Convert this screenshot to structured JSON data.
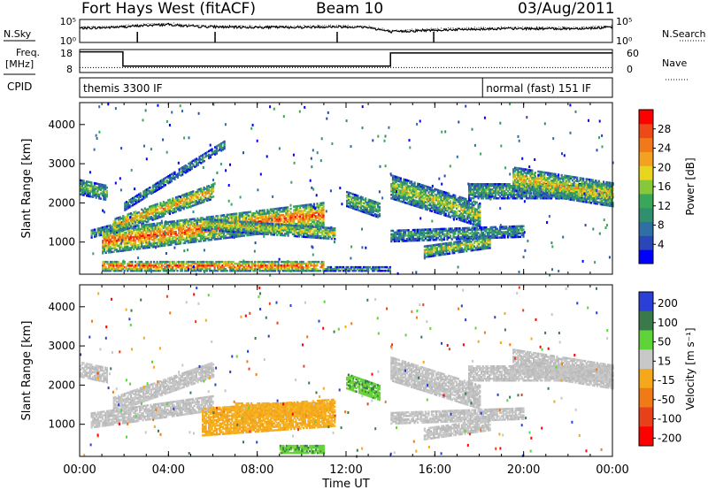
{
  "header": {
    "station": "Fort Hays West (fitACF)",
    "beam": "Beam 10",
    "date": "03/Aug/2011"
  },
  "chart_data": [
    {
      "type": "line",
      "panel": "noise",
      "ylabels_left": [
        "10^5",
        "10^0"
      ],
      "ylabels_right": [
        "10^5",
        "10^0"
      ],
      "series": [
        {
          "name": "N.Sky",
          "style": "solid"
        },
        {
          "name": "N.Search",
          "style": "dotted"
        }
      ],
      "x_hours": [
        0,
        1,
        2,
        3,
        4,
        5,
        6,
        7,
        8,
        9,
        10,
        11,
        12,
        13,
        14,
        15,
        16,
        17,
        18,
        19,
        20,
        21,
        22,
        23,
        24
      ],
      "nsky_log10": [
        3.1,
        3.2,
        3.4,
        3.7,
        3.9,
        3.5,
        3.4,
        3.3,
        3.3,
        3.3,
        3.3,
        3.4,
        3.4,
        3.3,
        2.3,
        2.5,
        2.7,
        2.8,
        2.9,
        3.0,
        3.0,
        3.0,
        3.0,
        3.1,
        3.3
      ],
      "markers_hours": [
        2.6,
        6.1,
        11.6,
        15.95
      ]
    },
    {
      "type": "line",
      "panel": "frequency-nave",
      "ylabel_left": "Freq. [MHz]",
      "yticks_left": [
        "18",
        "8"
      ],
      "ylabel_right": "Nave",
      "yticks_right": [
        "60",
        "0"
      ],
      "series": [
        {
          "name": "Freq.",
          "style": "solid"
        },
        {
          "name": "Nave",
          "style": "dotted"
        }
      ],
      "freq_steps": [
        {
          "from": 0,
          "to": 1.95,
          "mhz": 17
        },
        {
          "from": 1.95,
          "to": 14.0,
          "mhz": 10.8
        },
        {
          "from": 14.0,
          "to": 24,
          "mhz": 16.5
        }
      ],
      "nave_level": 13
    },
    {
      "type": "bar",
      "panel": "cpid",
      "label": "CPID",
      "segments": [
        {
          "from": 0,
          "to": 18.15,
          "text": "themis 3300 IF"
        },
        {
          "from": 18.15,
          "to": 24,
          "text": "normal (fast) 151 IF"
        }
      ]
    },
    {
      "type": "heatmap",
      "panel": "power",
      "ylabel": "Slant Range [km]",
      "yticks": [
        1000,
        2000,
        3000,
        4000
      ],
      "ylim": [
        180,
        4560
      ],
      "colorbar_label": "Power [dB]",
      "colorbar_ticks": [
        4,
        8,
        12,
        16,
        20,
        24,
        28
      ],
      "colorbar_colors": [
        "#0000ff",
        "#2a46b8",
        "#2f6fa6",
        "#2f8f6e",
        "#3aa65a",
        "#87c83a",
        "#e7d51e",
        "#f4a020",
        "#f07a1a",
        "#ee4a18",
        "#ff0000"
      ],
      "bands": [
        {
          "t0": 0.0,
          "t1": 1.2,
          "r0": 2200,
          "r1": 2600,
          "slope": -120,
          "intensity": 0.45
        },
        {
          "t0": 0.5,
          "t1": 2.0,
          "r0": 1100,
          "r1": 1300,
          "slope": 150,
          "intensity": 0.4
        },
        {
          "t0": 1.0,
          "t1": 11.0,
          "r0": 700,
          "r1": 1300,
          "slope": 70,
          "intensity": 0.85
        },
        {
          "t0": 1.5,
          "t1": 6.0,
          "r0": 1200,
          "r1": 1600,
          "slope": 200,
          "intensity": 0.7
        },
        {
          "t0": 2.0,
          "t1": 6.5,
          "r0": 1800,
          "r1": 2000,
          "slope": 350,
          "intensity": 0.35
        },
        {
          "t0": 5.5,
          "t1": 11.5,
          "r0": 1300,
          "r1": 1600,
          "slope": -40,
          "intensity": 0.6
        },
        {
          "t0": 1.0,
          "t1": 11.0,
          "r0": 250,
          "r1": 500,
          "slope": 0,
          "intensity": 0.9
        },
        {
          "t0": 11.0,
          "t1": 14.0,
          "r0": 250,
          "r1": 350,
          "slope": 0,
          "intensity": 0.4
        },
        {
          "t0": 12.0,
          "t1": 13.5,
          "r0": 1900,
          "r1": 2300,
          "slope": -200,
          "intensity": 0.5
        },
        {
          "t0": 14.0,
          "t1": 18.0,
          "r0": 2100,
          "r1": 2700,
          "slope": -180,
          "intensity": 0.55
        },
        {
          "t0": 14.0,
          "t1": 20.0,
          "r0": 1000,
          "r1": 1300,
          "slope": 20,
          "intensity": 0.4
        },
        {
          "t0": 15.5,
          "t1": 18.5,
          "r0": 600,
          "r1": 900,
          "slope": 80,
          "intensity": 0.6
        },
        {
          "t0": 17.5,
          "t1": 24.0,
          "r0": 2100,
          "r1": 2500,
          "slope": 0,
          "intensity": 0.45
        },
        {
          "t0": 19.5,
          "t1": 24.0,
          "r0": 2300,
          "r1": 2900,
          "slope": -90,
          "intensity": 0.65
        }
      ]
    },
    {
      "type": "heatmap",
      "panel": "velocity",
      "ylabel": "Slant Range [km]",
      "yticks": [
        1000,
        2000,
        3000,
        4000
      ],
      "ylim": [
        180,
        4560
      ],
      "colorbar_label": "Velocity [m s^-1]",
      "colorbar_ticks": [
        200,
        100,
        50,
        15,
        -15,
        -50,
        -100,
        -200
      ],
      "colorbar_colors": [
        "#2a3fd8",
        "#3a7a4a",
        "#5fd33a",
        "#c8c8c8",
        "#f5a81a",
        "#f07a16",
        "#e8401a",
        "#ff0000"
      ],
      "xticks": [
        "00:00",
        "04:00",
        "08:00",
        "12:00",
        "16:00",
        "20:00",
        "00:00"
      ],
      "xlabel": "Time UT",
      "xlim_hours": [
        0,
        24
      ],
      "bands": [
        {
          "t0": 0.0,
          "t1": 1.2,
          "r0": 2200,
          "r1": 2600,
          "slope": -120,
          "vclass": "grey"
        },
        {
          "t0": 0.5,
          "t1": 6.0,
          "r0": 900,
          "r1": 1300,
          "slope": 80,
          "vclass": "grey"
        },
        {
          "t0": 1.5,
          "t1": 6.0,
          "r0": 1300,
          "r1": 1700,
          "slope": 200,
          "vclass": "grey"
        },
        {
          "t0": 5.5,
          "t1": 11.5,
          "r0": 700,
          "r1": 1400,
          "slope": 40,
          "vclass": "orange"
        },
        {
          "t0": 7.0,
          "t1": 11.0,
          "r0": 1200,
          "r1": 1550,
          "slope": 0,
          "vclass": "orange"
        },
        {
          "t0": 9.0,
          "t1": 11.0,
          "r0": 250,
          "r1": 450,
          "slope": 0,
          "vclass": "green"
        },
        {
          "t0": 12.0,
          "t1": 13.5,
          "r0": 1900,
          "r1": 2300,
          "slope": -200,
          "vclass": "green"
        },
        {
          "t0": 14.0,
          "t1": 18.0,
          "r0": 2100,
          "r1": 2700,
          "slope": -180,
          "vclass": "grey"
        },
        {
          "t0": 14.0,
          "t1": 20.0,
          "r0": 1000,
          "r1": 1300,
          "slope": 20,
          "vclass": "grey"
        },
        {
          "t0": 15.5,
          "t1": 18.5,
          "r0": 600,
          "r1": 900,
          "slope": 80,
          "vclass": "grey"
        },
        {
          "t0": 17.5,
          "t1": 24.0,
          "r0": 2100,
          "r1": 2500,
          "slope": 0,
          "vclass": "grey"
        },
        {
          "t0": 19.5,
          "t1": 24.0,
          "r0": 2300,
          "r1": 2900,
          "slope": -90,
          "vclass": "grey"
        }
      ]
    }
  ]
}
